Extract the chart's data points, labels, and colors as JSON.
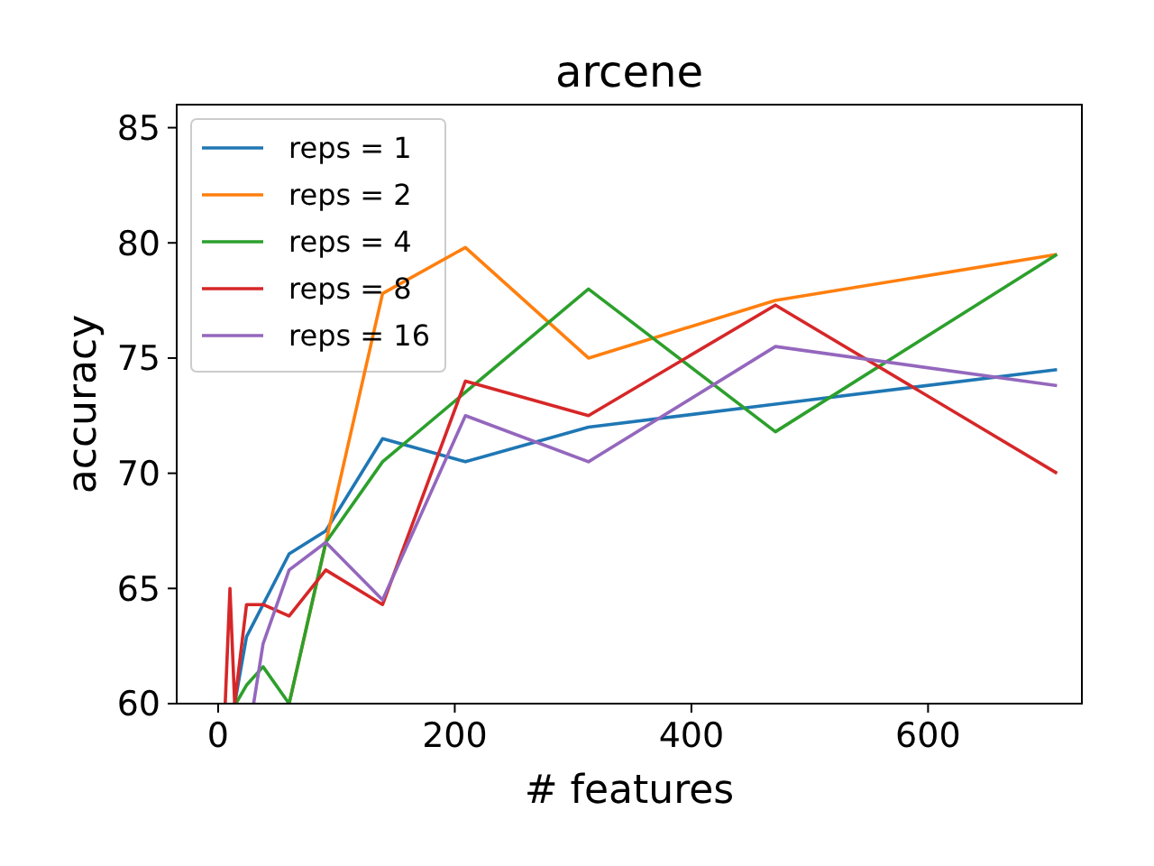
{
  "chart_data": {
    "type": "line",
    "title": "arcene",
    "xlabel": "# features",
    "ylabel": "accuracy",
    "xlim": [
      -35,
      730
    ],
    "ylim": [
      60,
      86
    ],
    "xticks": [
      0,
      200,
      400,
      600
    ],
    "yticks": [
      60,
      65,
      70,
      75,
      80,
      85
    ],
    "grid": false,
    "legend": "top left",
    "marker": "none",
    "line_style": "solid",
    "series": [
      {
        "name": "reps = 1",
        "color": "#1f77b4",
        "x": [
          14,
          24,
          60,
          91,
          139,
          209,
          313,
          471,
          709
        ],
        "values": [
          60,
          62.9,
          66.5,
          67.5,
          71.5,
          70.5,
          72,
          73,
          74.5
        ]
      },
      {
        "name": "reps = 2",
        "color": "#ff7f0e",
        "x": [
          60,
          139,
          209,
          313,
          471,
          709
        ],
        "values": [
          60,
          77.8,
          79.8,
          75,
          77.5,
          79.5
        ]
      },
      {
        "name": "reps = 4",
        "color": "#2ca02c",
        "x": [
          15,
          24,
          38,
          60,
          91,
          139,
          313,
          471,
          709
        ],
        "values": [
          60,
          60.8,
          61.6,
          60,
          67,
          70.5,
          78,
          71.8,
          79.5
        ]
      },
      {
        "name": "reps = 8",
        "color": "#d62728",
        "x": [
          6,
          10,
          14,
          24,
          38,
          60,
          91,
          139,
          209,
          313,
          471,
          709
        ],
        "values": [
          60,
          65,
          60,
          64.3,
          64.3,
          63.8,
          65.8,
          64.3,
          74,
          72.5,
          77.3,
          70
        ]
      },
      {
        "name": "reps = 16",
        "color": "#9467bd",
        "x": [
          30,
          38,
          60,
          91,
          139,
          209,
          313,
          471,
          709
        ],
        "values": [
          60,
          62.6,
          65.8,
          67,
          64.5,
          72.5,
          70.5,
          75.5,
          73.8
        ]
      }
    ]
  }
}
